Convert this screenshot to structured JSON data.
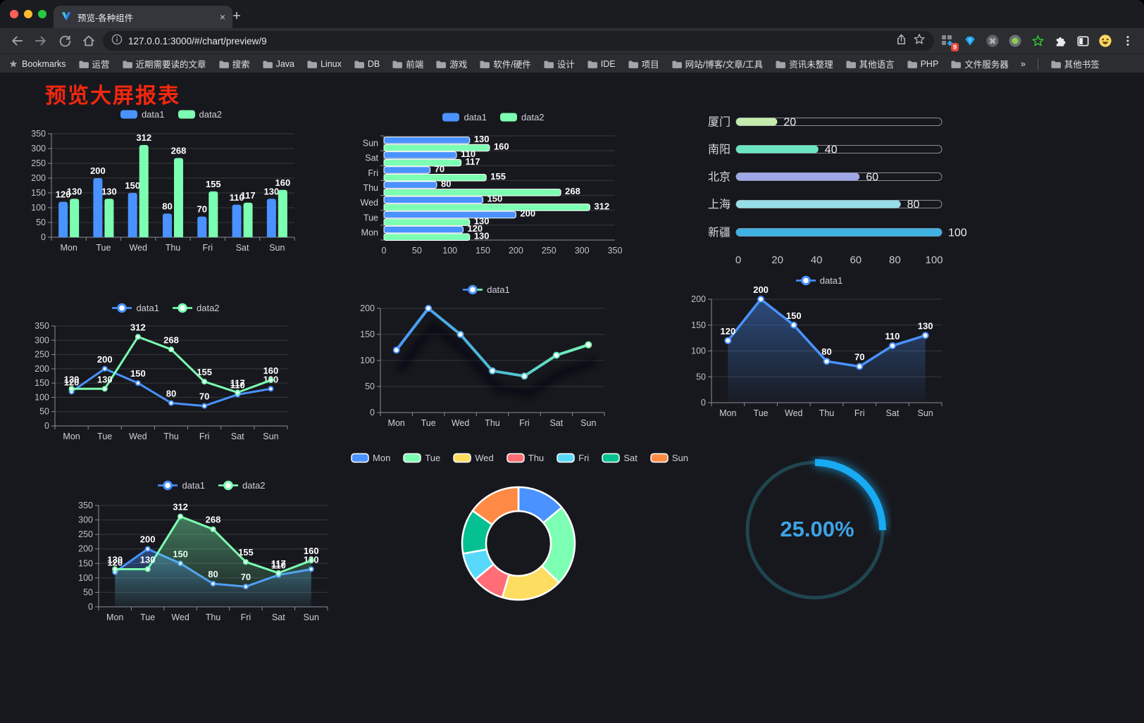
{
  "browser": {
    "traffic_lights": [
      "#ff5f57",
      "#febc2e",
      "#28c840"
    ],
    "tab": {
      "title": "预览-各种组件",
      "close": "×",
      "new_tab": "+"
    },
    "url": "127.0.0.1:3000/#/chart/preview/9",
    "extension_badge": "9",
    "bookmarks": [
      {
        "icon": "star",
        "label": "Bookmarks"
      },
      {
        "icon": "folder",
        "label": "运营"
      },
      {
        "icon": "folder",
        "label": "近期需要读的文章"
      },
      {
        "icon": "folder",
        "label": "搜索"
      },
      {
        "icon": "folder",
        "label": "Java"
      },
      {
        "icon": "folder",
        "label": "Linux"
      },
      {
        "icon": "folder",
        "label": "DB"
      },
      {
        "icon": "folder",
        "label": "前端"
      },
      {
        "icon": "folder",
        "label": "游戏"
      },
      {
        "icon": "folder",
        "label": "软件/硬件"
      },
      {
        "icon": "folder",
        "label": "设计"
      },
      {
        "icon": "folder",
        "label": "IDE"
      },
      {
        "icon": "folder",
        "label": "项目"
      },
      {
        "icon": "folder",
        "label": "网站/博客/文章/工具"
      },
      {
        "icon": "folder",
        "label": "资讯未整理"
      },
      {
        "icon": "folder",
        "label": "其他语言"
      },
      {
        "icon": "folder",
        "label": "PHP"
      },
      {
        "icon": "folder",
        "label": "文件服务器"
      },
      {
        "icon": "none",
        "label": "»"
      },
      {
        "icon": "folder",
        "label": "其他书签",
        "sep_before": true
      }
    ]
  },
  "page": {
    "title": "预览大屏报表",
    "title_color": "#f5270f",
    "bg": "#17181d"
  },
  "chart_data": [
    {
      "id": "bar-grouped",
      "type": "bar",
      "legend": [
        "data1",
        "data2"
      ],
      "categories": [
        "Mon",
        "Tue",
        "Wed",
        "Thu",
        "Fri",
        "Sat",
        "Sun"
      ],
      "series": [
        {
          "name": "data1",
          "color": "#4992ff",
          "values": [
            120,
            200,
            150,
            80,
            70,
            110,
            130
          ]
        },
        {
          "name": "data2",
          "color": "#7cffb2",
          "values": [
            130,
            130,
            312,
            268,
            155,
            117,
            160
          ]
        }
      ],
      "ylim": [
        0,
        350
      ],
      "ytick": 50,
      "labels": true,
      "grid": true
    },
    {
      "id": "hbar-grouped",
      "type": "bar",
      "orientation": "horizontal",
      "legend": [
        "data1",
        "data2"
      ],
      "categories_top_to_bottom": [
        "Sun",
        "Sat",
        "Fri",
        "Thu",
        "Wed",
        "Tue",
        "Mon"
      ],
      "series": [
        {
          "name": "data1",
          "color": "#4992ff",
          "values_top_to_bottom": [
            130,
            110,
            70,
            80,
            150,
            200,
            120
          ]
        },
        {
          "name": "data2",
          "color": "#7cffb2",
          "values_top_to_bottom": [
            160,
            117,
            155,
            268,
            312,
            130,
            130
          ]
        }
      ],
      "xlim": [
        0,
        350
      ],
      "xticks": [
        0,
        50,
        100,
        150,
        200,
        250,
        300,
        350
      ],
      "labels": true
    },
    {
      "id": "progress-bars",
      "type": "bar",
      "orientation": "horizontal-progress",
      "items": [
        {
          "label": "厦门",
          "value": 20,
          "color": "#c4ebad"
        },
        {
          "label": "南阳",
          "value": 40,
          "color": "#6be6c1"
        },
        {
          "label": "北京",
          "value": 60,
          "color": "#a0a7e6"
        },
        {
          "label": "上海",
          "value": 80,
          "color": "#96dee8"
        },
        {
          "label": "新疆",
          "value": 100,
          "color": "#3fb1e3"
        }
      ],
      "xlim": [
        0,
        100
      ],
      "xticks": [
        0,
        20,
        40,
        60,
        80,
        100
      ]
    },
    {
      "id": "line-two",
      "type": "line",
      "legend": [
        "data1",
        "data2"
      ],
      "categories": [
        "Mon",
        "Tue",
        "Wed",
        "Thu",
        "Fri",
        "Sat",
        "Sun"
      ],
      "series": [
        {
          "name": "data1",
          "color": "#4992ff",
          "values": [
            120,
            200,
            150,
            80,
            70,
            110,
            130
          ]
        },
        {
          "name": "data2",
          "color": "#7cffb2",
          "values": [
            130,
            130,
            312,
            268,
            155,
            117,
            160
          ]
        }
      ],
      "ylim": [
        0,
        350
      ],
      "ytick": 50,
      "labels": true
    },
    {
      "id": "line-gradient",
      "type": "line",
      "legend": [
        "data1"
      ],
      "categories": [
        "Mon",
        "Tue",
        "Wed",
        "Thu",
        "Fri",
        "Sat",
        "Sun"
      ],
      "series": [
        {
          "name": "data1",
          "color": "#4992ff",
          "color_end": "#7cffb2",
          "values": [
            120,
            200,
            150,
            80,
            70,
            110,
            130
          ]
        }
      ],
      "ylim": [
        0,
        200
      ],
      "ytick": 50,
      "labels": false,
      "shadow": true
    },
    {
      "id": "area-one",
      "type": "area",
      "legend": [
        "data1"
      ],
      "categories": [
        "Mon",
        "Tue",
        "Wed",
        "Thu",
        "Fri",
        "Sat",
        "Sun"
      ],
      "series": [
        {
          "name": "data1",
          "color": "#4992ff",
          "area": true,
          "values": [
            120,
            200,
            150,
            80,
            70,
            110,
            130
          ]
        }
      ],
      "ylim": [
        0,
        200
      ],
      "ytick": 50,
      "labels": true
    },
    {
      "id": "area-two",
      "type": "area",
      "legend": [
        "data1",
        "data2"
      ],
      "categories": [
        "Mon",
        "Tue",
        "Wed",
        "Thu",
        "Fri",
        "Sat",
        "Sun"
      ],
      "series": [
        {
          "name": "data1",
          "color": "#4992ff",
          "area": true,
          "values": [
            120,
            200,
            150,
            80,
            70,
            110,
            130
          ]
        },
        {
          "name": "data2",
          "color": "#7cffb2",
          "area": true,
          "values": [
            130,
            130,
            312,
            268,
            155,
            117,
            160
          ]
        }
      ],
      "ylim": [
        0,
        350
      ],
      "ytick": 50,
      "labels": true
    },
    {
      "id": "donut",
      "type": "pie",
      "inner": true,
      "categories": [
        "Mon",
        "Tue",
        "Wed",
        "Thu",
        "Fri",
        "Sat",
        "Sun"
      ],
      "values": [
        120,
        200,
        150,
        80,
        70,
        110,
        130
      ],
      "colors": [
        "#4992ff",
        "#7cffb2",
        "#fddd60",
        "#ff6e76",
        "#58d9f9",
        "#05c091",
        "#ff8a45"
      ]
    },
    {
      "id": "gauge",
      "type": "gauge",
      "value": 25,
      "label": "25.00%",
      "color": "#18aaf3",
      "track_color": "#1f4550"
    }
  ]
}
